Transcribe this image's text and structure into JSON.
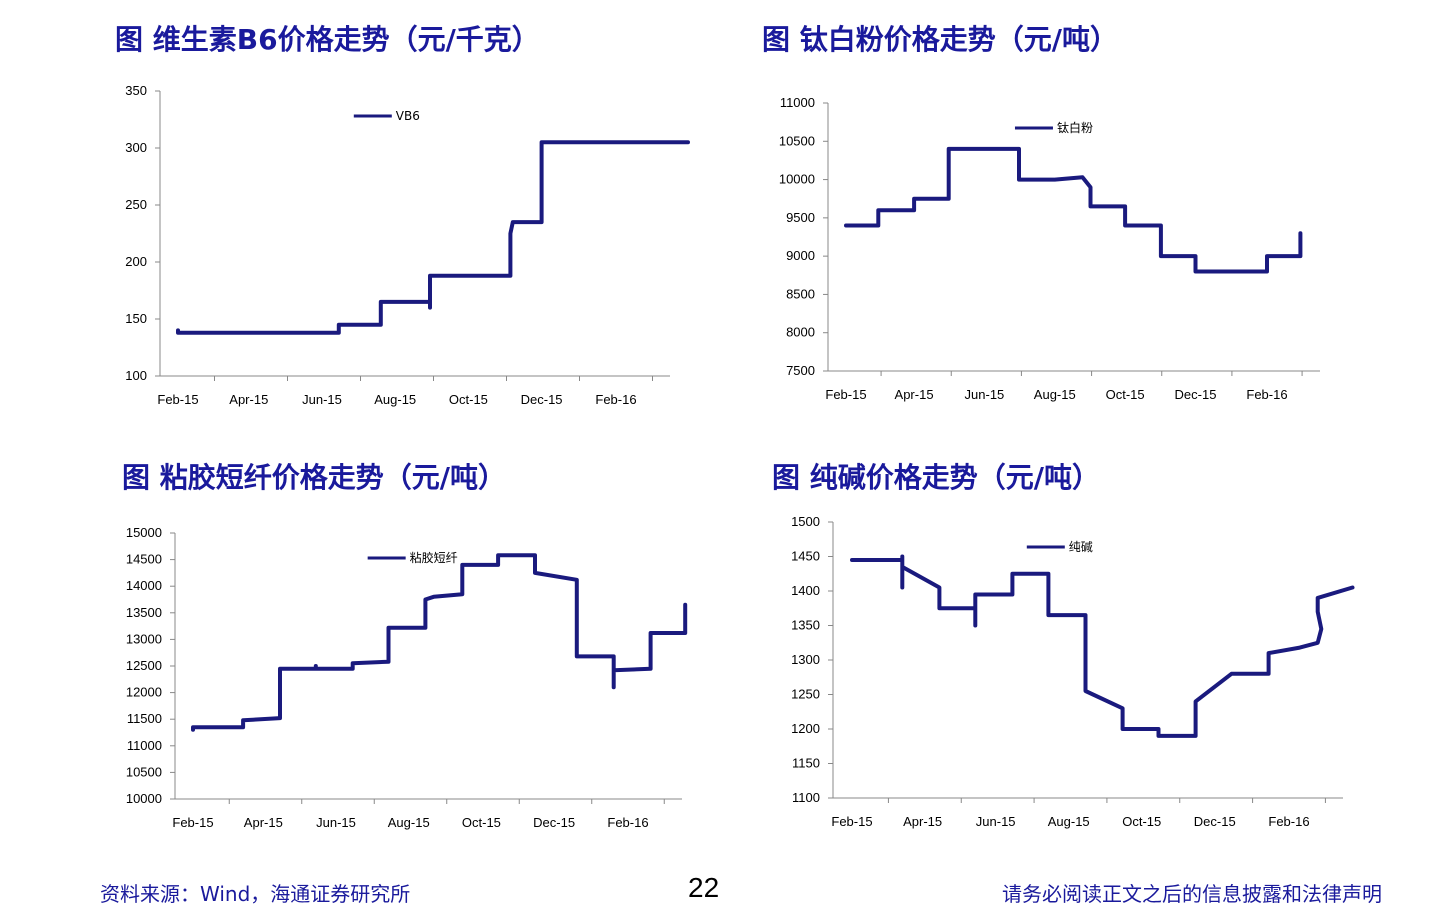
{
  "footer": {
    "source": "资料来源：Wind，海通证券研究所",
    "page_number": "22",
    "notice": "请务必阅读正文之后的信息披露和法律声明"
  },
  "chart_data": [
    {
      "type": "line",
      "title": "图 维生素B6价格走势（元/千克）",
      "x_ticks": [
        "Feb-15",
        "Apr-15",
        "Jun-15",
        "Aug-15",
        "Oct-15",
        "Dec-15",
        "Feb-16"
      ],
      "ylim": [
        100,
        350
      ],
      "y_ticks": [
        100,
        150,
        200,
        250,
        300,
        350
      ],
      "xlabel": "",
      "ylabel": "",
      "grid": false,
      "legend_position": "top-center",
      "series": [
        {
          "name": "VB6",
          "color": "#1a1a7e",
          "points": [
            [
              "2015-02-01",
              140
            ],
            [
              "2015-02-01",
              138
            ],
            [
              "2015-06-15",
              138
            ],
            [
              "2015-06-15",
              145
            ],
            [
              "2015-07-20",
              145
            ],
            [
              "2015-07-20",
              165
            ],
            [
              "2015-08-30",
              165
            ],
            [
              "2015-08-30",
              160
            ],
            [
              "2015-08-30",
              188
            ],
            [
              "2015-11-05",
              188
            ],
            [
              "2015-11-05",
              225
            ],
            [
              "2015-11-07",
              235
            ],
            [
              "2015-12-01",
              235
            ],
            [
              "2015-12-01",
              305
            ],
            [
              "2016-04-01",
              305
            ]
          ]
        }
      ]
    },
    {
      "type": "line",
      "title": "图  钛白粉价格走势（元/吨）",
      "x_ticks": [
        "Feb-15",
        "Apr-15",
        "Jun-15",
        "Aug-15",
        "Oct-15",
        "Dec-15",
        "Feb-16"
      ],
      "ylim": [
        7500,
        11000
      ],
      "y_ticks": [
        7500,
        8000,
        8500,
        9000,
        9500,
        10000,
        10500,
        11000
      ],
      "xlabel": "",
      "ylabel": "",
      "grid": false,
      "legend_position": "top-center",
      "series": [
        {
          "name": "钛白粉",
          "color": "#1a1a7e",
          "points": [
            [
              "2015-02-01",
              9400
            ],
            [
              "2015-03-01",
              9400
            ],
            [
              "2015-03-01",
              9600
            ],
            [
              "2015-04-01",
              9600
            ],
            [
              "2015-04-01",
              9750
            ],
            [
              "2015-05-01",
              9750
            ],
            [
              "2015-05-01",
              10400
            ],
            [
              "2015-07-01",
              10400
            ],
            [
              "2015-07-01",
              10000
            ],
            [
              "2015-08-01",
              10000
            ],
            [
              "2015-08-25",
              10030
            ],
            [
              "2015-09-01",
              9900
            ],
            [
              "2015-09-01",
              9650
            ],
            [
              "2015-10-01",
              9650
            ],
            [
              "2015-10-01",
              9400
            ],
            [
              "2015-11-01",
              9400
            ],
            [
              "2015-11-01",
              9000
            ],
            [
              "2015-12-01",
              9000
            ],
            [
              "2015-12-01",
              8800
            ],
            [
              "2016-02-01",
              8800
            ],
            [
              "2016-02-01",
              9000
            ],
            [
              "2016-03-01",
              9000
            ],
            [
              "2016-03-01",
              9300
            ]
          ]
        }
      ]
    },
    {
      "type": "line",
      "title": "图  粘胶短纤价格走势（元/吨）",
      "x_ticks": [
        "Feb-15",
        "Apr-15",
        "Jun-15",
        "Aug-15",
        "Oct-15",
        "Dec-15",
        "Feb-16"
      ],
      "ylim": [
        10000,
        15000
      ],
      "y_ticks": [
        10000,
        10500,
        11000,
        11500,
        12000,
        12500,
        13000,
        13500,
        14000,
        14500,
        15000
      ],
      "xlabel": "",
      "ylabel": "",
      "grid": false,
      "legend_position": "top-center",
      "series": [
        {
          "name": "粘胶短纤",
          "color": "#1a1a7e",
          "points": [
            [
              "2015-02-01",
              11300
            ],
            [
              "2015-02-01",
              11350
            ],
            [
              "2015-03-15",
              11350
            ],
            [
              "2015-03-15",
              11480
            ],
            [
              "2015-04-15",
              11520
            ],
            [
              "2015-04-15",
              12450
            ],
            [
              "2015-05-15",
              12450
            ],
            [
              "2015-05-15",
              12500
            ],
            [
              "2015-05-15",
              12450
            ],
            [
              "2015-06-15",
              12450
            ],
            [
              "2015-06-15",
              12550
            ],
            [
              "2015-07-15",
              12580
            ],
            [
              "2015-07-15",
              13220
            ],
            [
              "2015-08-15",
              13220
            ],
            [
              "2015-08-15",
              13750
            ],
            [
              "2015-08-22",
              13800
            ],
            [
              "2015-09-15",
              13850
            ],
            [
              "2015-09-15",
              14400
            ],
            [
              "2015-10-15",
              14400
            ],
            [
              "2015-10-15",
              14580
            ],
            [
              "2015-11-15",
              14580
            ],
            [
              "2015-11-15",
              14250
            ],
            [
              "2015-12-20",
              14120
            ],
            [
              "2015-12-20",
              12680
            ],
            [
              "2016-01-20",
              12680
            ],
            [
              "2016-01-20",
              12100
            ],
            [
              "2016-01-20",
              12420
            ],
            [
              "2016-02-20",
              12450
            ],
            [
              "2016-02-20",
              13120
            ],
            [
              "2016-03-20",
              13120
            ],
            [
              "2016-03-20",
              13650
            ]
          ]
        }
      ]
    },
    {
      "type": "line",
      "title": "图  纯碱价格走势（元/吨）",
      "x_ticks": [
        "Feb-15",
        "Apr-15",
        "Jun-15",
        "Aug-15",
        "Oct-15",
        "Dec-15",
        "Feb-16"
      ],
      "ylim": [
        1100,
        1500
      ],
      "y_ticks": [
        1100,
        1150,
        1200,
        1250,
        1300,
        1350,
        1400,
        1450,
        1500
      ],
      "xlabel": "",
      "ylabel": "",
      "grid": false,
      "legend_position": "top-center",
      "series": [
        {
          "name": "纯碱",
          "color": "#1a1a7e",
          "points": [
            [
              "2015-02-01",
              1445
            ],
            [
              "2015-03-15",
              1445
            ],
            [
              "2015-03-15",
              1405
            ],
            [
              "2015-03-15",
              1450
            ],
            [
              "2015-03-15",
              1435
            ],
            [
              "2015-04-15",
              1405
            ],
            [
              "2015-04-15",
              1375
            ],
            [
              "2015-05-15",
              1375
            ],
            [
              "2015-05-15",
              1350
            ],
            [
              "2015-05-15",
              1395
            ],
            [
              "2015-06-15",
              1395
            ],
            [
              "2015-06-15",
              1425
            ],
            [
              "2015-07-15",
              1425
            ],
            [
              "2015-07-15",
              1365
            ],
            [
              "2015-08-15",
              1365
            ],
            [
              "2015-08-15",
              1255
            ],
            [
              "2015-09-15",
              1230
            ],
            [
              "2015-09-15",
              1200
            ],
            [
              "2015-10-15",
              1200
            ],
            [
              "2015-10-15",
              1190
            ],
            [
              "2015-11-15",
              1190
            ],
            [
              "2015-11-15",
              1240
            ],
            [
              "2015-12-15",
              1280
            ],
            [
              "2016-01-15",
              1280
            ],
            [
              "2016-01-15",
              1310
            ],
            [
              "2016-02-10",
              1318
            ],
            [
              "2016-02-25",
              1325
            ],
            [
              "2016-02-28",
              1345
            ],
            [
              "2016-02-25",
              1370
            ],
            [
              "2016-02-25",
              1390
            ],
            [
              "2016-03-25",
              1405
            ]
          ]
        }
      ]
    }
  ]
}
